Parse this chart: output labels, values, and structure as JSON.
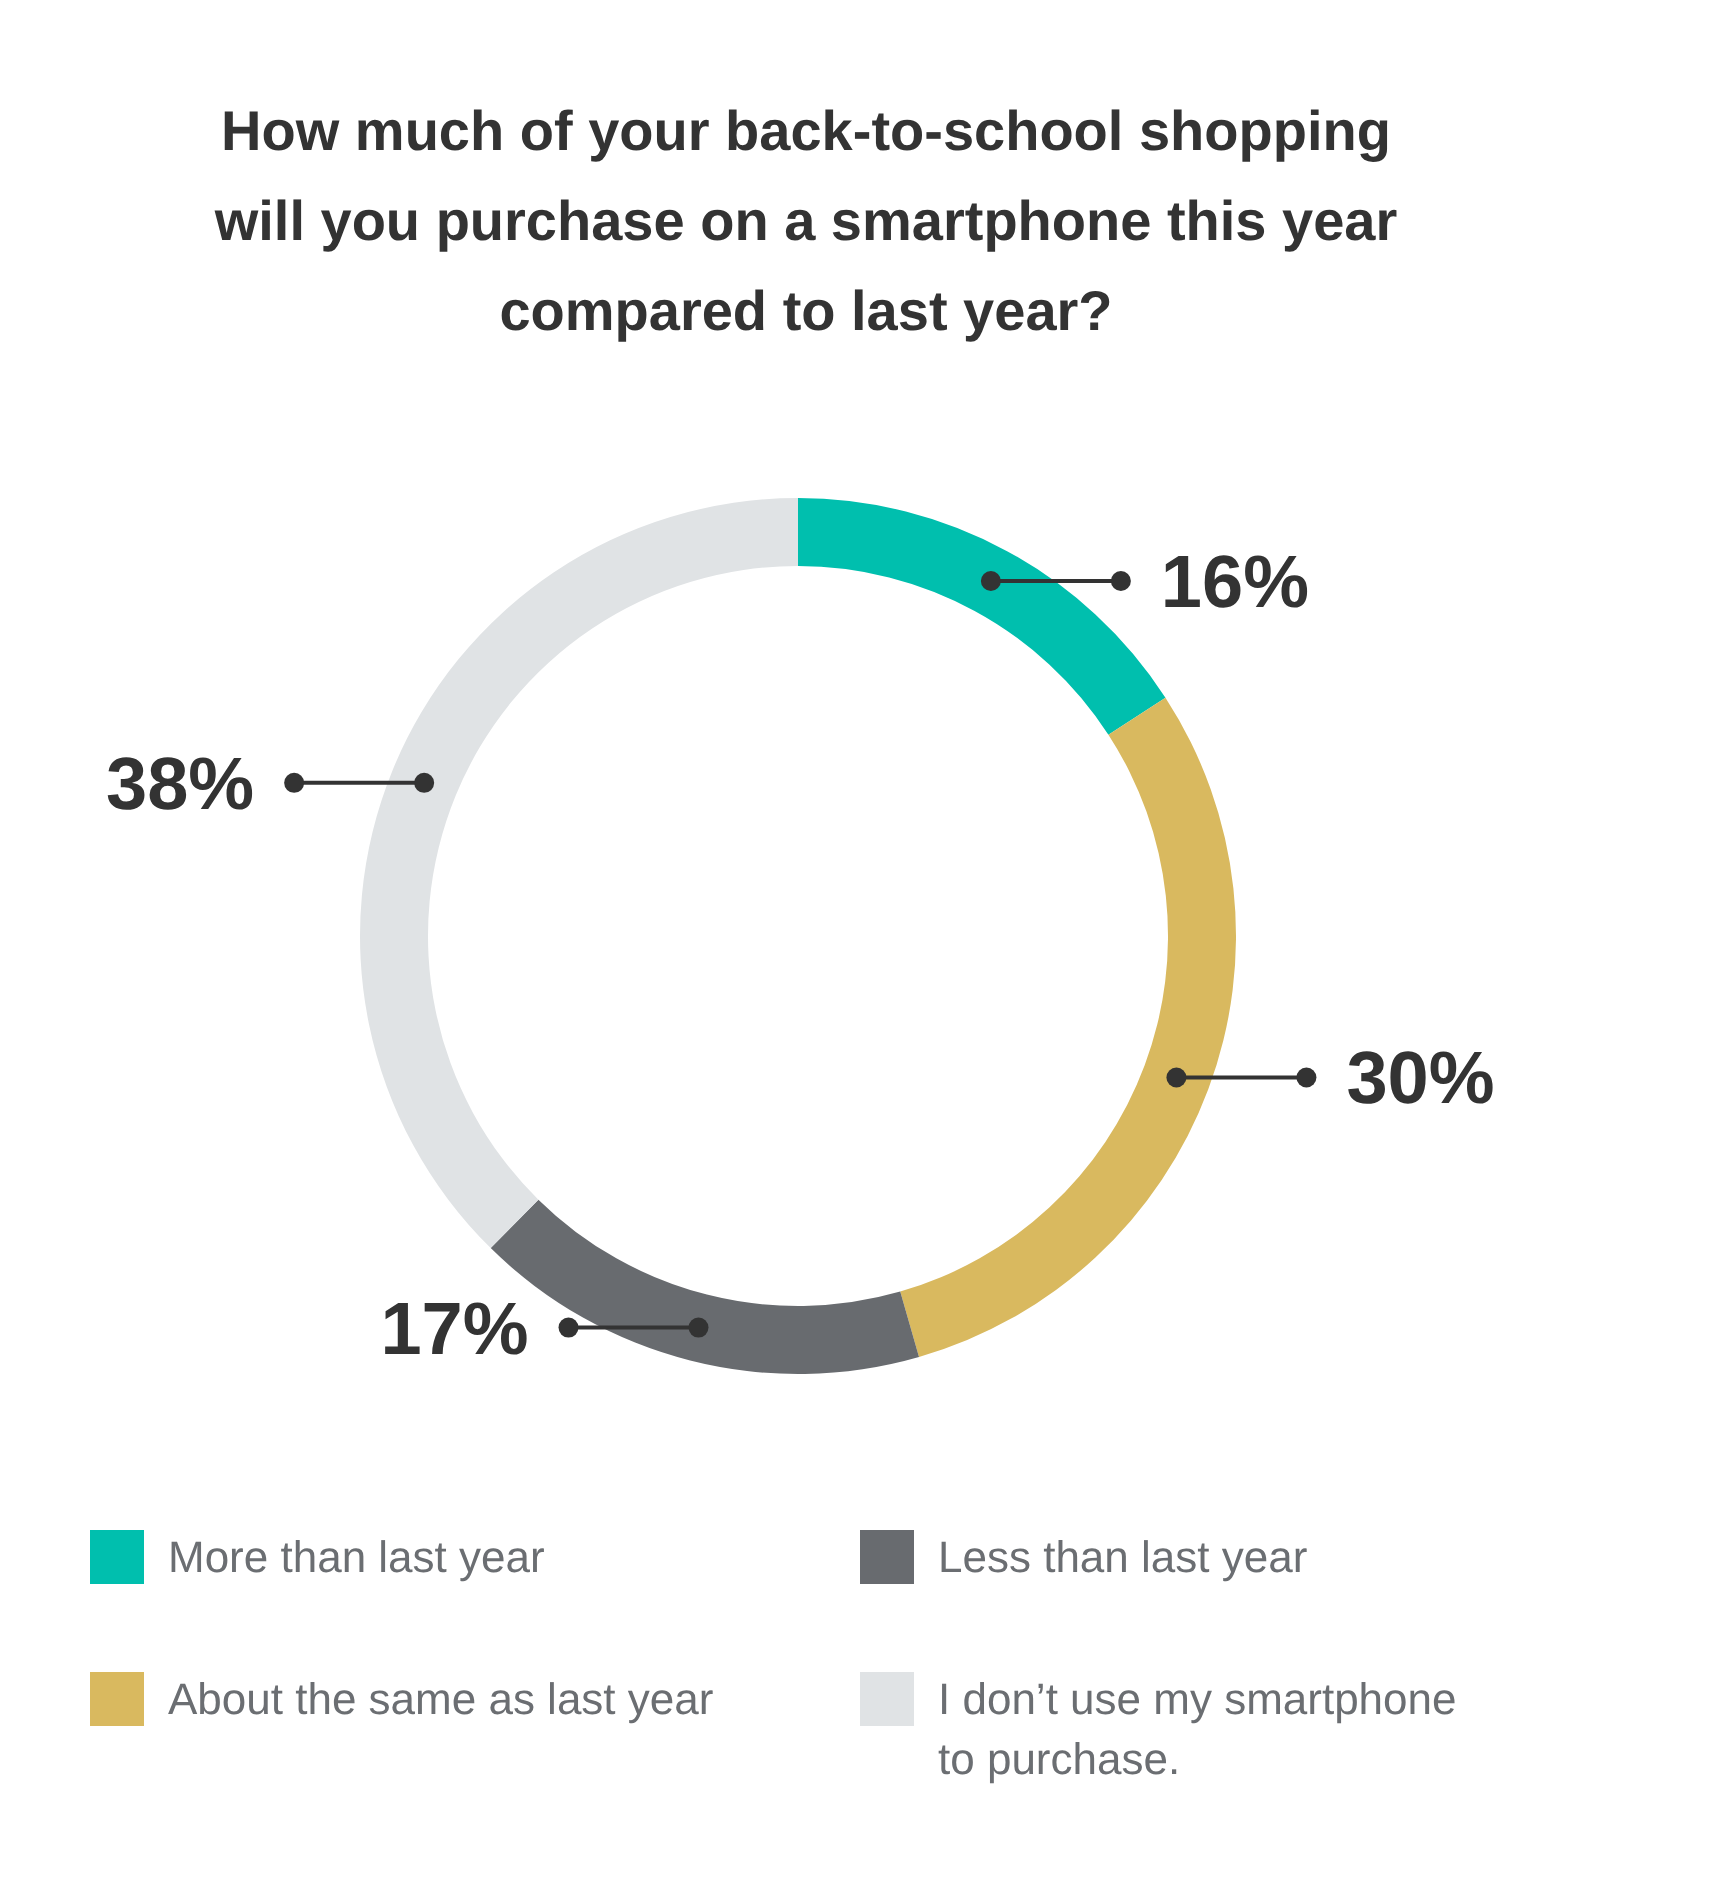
{
  "chart_data": {
    "type": "donut",
    "title": "How much of your back-to-school shopping will you purchase on a smartphone this year compared to last year?",
    "categories": [
      "More than last year",
      "About the same as last year",
      "Less than last year",
      "I don’t use my smartphone to purchase."
    ],
    "values": [
      16,
      30,
      17,
      38
    ],
    "colors": [
      "#00bfae",
      "#d9b95f",
      "#686b6f",
      "#e0e3e5"
    ],
    "value_labels": [
      "16%",
      "30%",
      "17%",
      "38%"
    ],
    "legend": "bottom"
  }
}
